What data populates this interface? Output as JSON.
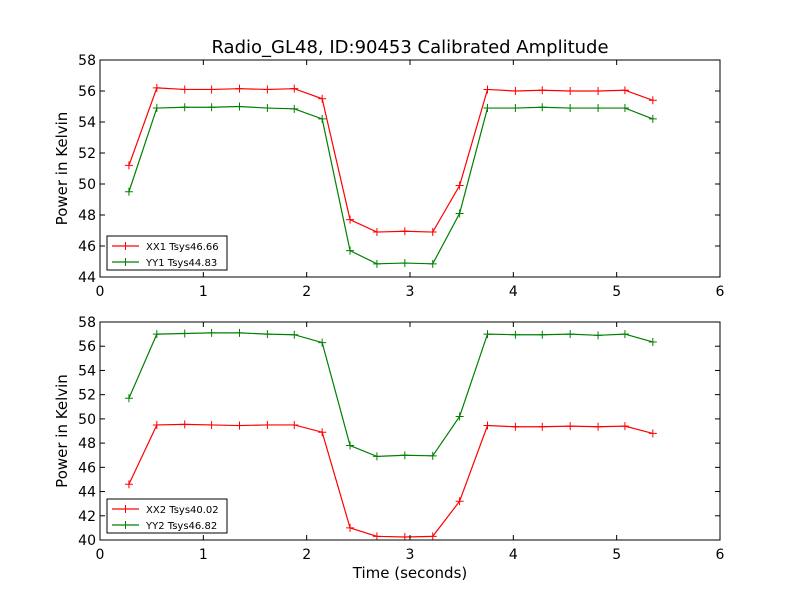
{
  "title": "Radio_GL48, ID:90453 Calibrated Amplitude",
  "chart_data": [
    {
      "type": "line",
      "title": "Radio_GL48, ID:90453 Calibrated Amplitude",
      "xlabel": "",
      "ylabel": "Power in Kelvin",
      "xlim": [
        0,
        6
      ],
      "ylim": [
        44,
        58
      ],
      "xticks": [
        "0",
        "1",
        "2",
        "3",
        "4",
        "5",
        "6"
      ],
      "yticks": [
        "44",
        "46",
        "48",
        "50",
        "52",
        "54",
        "56",
        "58"
      ],
      "grid": false,
      "legend": "lower-left",
      "x": [
        0.28,
        0.55,
        0.82,
        1.08,
        1.35,
        1.62,
        1.88,
        2.15,
        2.42,
        2.68,
        2.95,
        3.22,
        3.48,
        3.75,
        4.02,
        4.28,
        4.55,
        4.82,
        5.08,
        5.35
      ],
      "series": [
        {
          "name": "XX1 Tsys46.66",
          "color": "#ff0000",
          "values": [
            51.2,
            56.2,
            56.1,
            56.1,
            56.15,
            56.1,
            56.15,
            55.5,
            47.7,
            46.9,
            46.95,
            46.9,
            49.9,
            56.1,
            56.0,
            56.05,
            56.0,
            56.0,
            56.05,
            55.4
          ]
        },
        {
          "name": "YY1 Tsys44.83",
          "color": "#008000",
          "values": [
            49.5,
            54.9,
            54.95,
            54.95,
            55.0,
            54.9,
            54.85,
            54.2,
            45.7,
            44.85,
            44.9,
            44.85,
            48.1,
            54.9,
            54.9,
            54.95,
            54.9,
            54.9,
            54.9,
            54.2
          ]
        }
      ]
    },
    {
      "type": "line",
      "title": "",
      "xlabel": "Time (seconds)",
      "ylabel": "Power in Kelvin",
      "xlim": [
        0,
        6
      ],
      "ylim": [
        40,
        58
      ],
      "xticks": [
        "0",
        "1",
        "2",
        "3",
        "4",
        "5",
        "6"
      ],
      "yticks": [
        "40",
        "42",
        "44",
        "46",
        "48",
        "50",
        "52",
        "54",
        "56",
        "58"
      ],
      "grid": false,
      "legend": "lower-left",
      "x": [
        0.28,
        0.55,
        0.82,
        1.08,
        1.35,
        1.62,
        1.88,
        2.15,
        2.42,
        2.68,
        2.95,
        3.22,
        3.48,
        3.75,
        4.02,
        4.28,
        4.55,
        4.82,
        5.08,
        5.35
      ],
      "series": [
        {
          "name": "XX2 Tsys40.02",
          "color": "#ff0000",
          "values": [
            44.6,
            49.5,
            49.55,
            49.5,
            49.45,
            49.5,
            49.5,
            48.9,
            41.0,
            40.3,
            40.25,
            40.3,
            43.2,
            49.45,
            49.35,
            49.35,
            49.4,
            49.35,
            49.4,
            48.8
          ]
        },
        {
          "name": "YY2 Tsys46.82",
          "color": "#008000",
          "values": [
            51.7,
            57.0,
            57.05,
            57.1,
            57.1,
            57.0,
            56.95,
            56.3,
            47.8,
            46.9,
            47.0,
            46.95,
            50.2,
            57.0,
            56.95,
            56.95,
            57.0,
            56.9,
            57.0,
            56.35
          ]
        }
      ]
    }
  ]
}
